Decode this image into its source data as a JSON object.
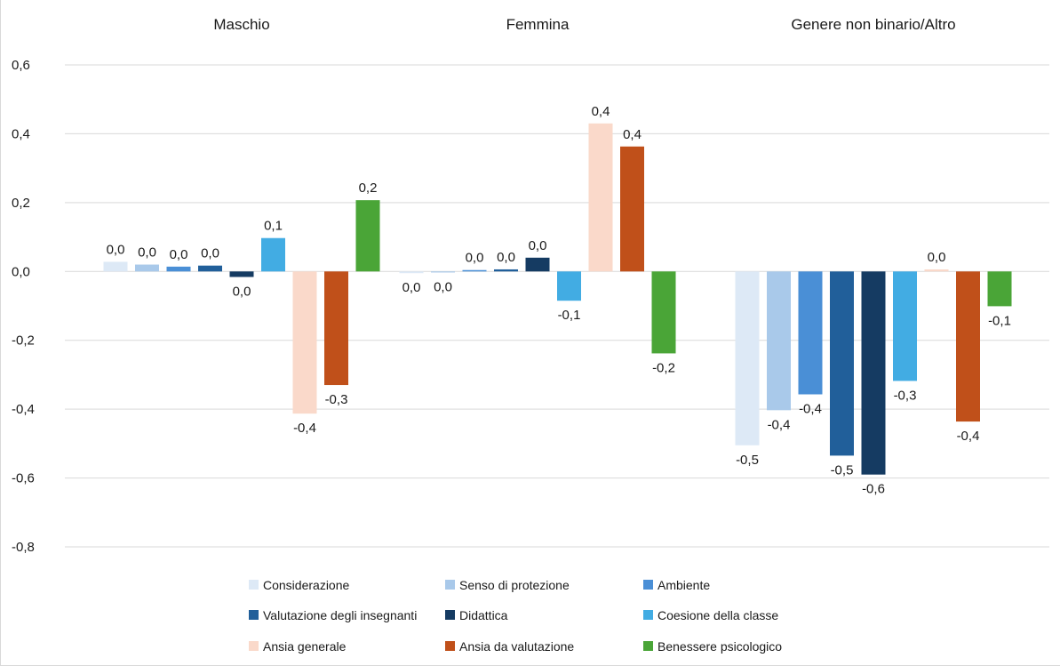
{
  "chart_data": {
    "type": "bar",
    "title": "",
    "xlabel": "",
    "ylabel": "",
    "ylim": [
      -0.8,
      0.6
    ],
    "yticks": [
      0.6,
      0.4,
      0.2,
      0.0,
      -0.2,
      -0.4,
      -0.6,
      -0.8
    ],
    "ytick_labels": [
      "0,6",
      "0,4",
      "0,2",
      "0,0",
      "-0,2",
      "-0,4",
      "-0,6",
      "-0,8"
    ],
    "grid": true,
    "legend_position": "bottom",
    "categories": [
      "Maschio",
      "Femmina",
      "Genere non binario/Altro"
    ],
    "series": [
      {
        "name": "Considerazione",
        "color": "#dde9f6",
        "values": [
          0.028,
          -0.005,
          -0.505
        ],
        "labels": [
          "0,0",
          "0,0",
          "-0,5"
        ]
      },
      {
        "name": "Senso di protezione",
        "color": "#a9c9ea",
        "values": [
          0.02,
          -0.003,
          -0.403
        ],
        "labels": [
          "0,0",
          "0,0",
          "-0,4"
        ]
      },
      {
        "name": "Ambiente",
        "color": "#4a8fd6",
        "values": [
          0.014,
          0.004,
          -0.357
        ],
        "labels": [
          "0,0",
          "0,0",
          "-0,4"
        ]
      },
      {
        "name": "Valutazione degli insegnanti",
        "color": "#215f9a",
        "values": [
          0.017,
          0.006,
          -0.535
        ],
        "labels": [
          "0,0",
          "0,0",
          "-0,5"
        ]
      },
      {
        "name": "Didattica",
        "color": "#153b62",
        "values": [
          -0.016,
          0.04,
          -0.59
        ],
        "labels": [
          "0,0",
          "0,0",
          "-0,6"
        ]
      },
      {
        "name": "Coesione della classe",
        "color": "#42ace3",
        "values": [
          0.097,
          -0.085,
          -0.318
        ],
        "labels": [
          "0,1",
          "-0,1",
          "-0,3"
        ]
      },
      {
        "name": "Ansia generale",
        "color": "#fad9ca",
        "values": [
          -0.413,
          0.43,
          0.006
        ],
        "labels": [
          "-0,4",
          "0,4",
          "0,0"
        ]
      },
      {
        "name": "Ansia da valutazione",
        "color": "#c0501a",
        "values": [
          -0.33,
          0.363,
          -0.436
        ],
        "labels": [
          "-0,3",
          "0,4",
          "-0,4"
        ]
      },
      {
        "name": "Benessere psicologico",
        "color": "#4aa537",
        "values": [
          0.207,
          -0.238,
          -0.101
        ],
        "labels": [
          "0,2",
          "-0,2",
          "-0,1"
        ]
      }
    ]
  }
}
